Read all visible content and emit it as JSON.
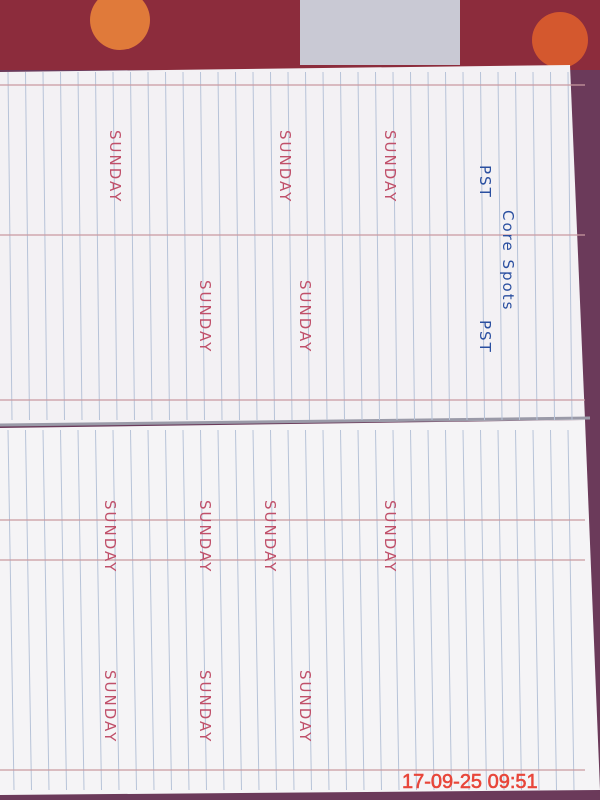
{
  "timestamp": "17-09-25  09:51",
  "top_page": {
    "headers": [
      "Core Spots",
      "PST",
      "PST"
    ],
    "notes": [
      "SUNDAY",
      "SUNDAY",
      "SUNDAY",
      "SUNDAY",
      "SUNDAY"
    ]
  },
  "bottom_page": {
    "notes": [
      "SUNDAY",
      "SUNDAY",
      "SUNDAY",
      "SUNDAY",
      "SUNDAY",
      "SUNDAY",
      "SUNDAY"
    ]
  }
}
